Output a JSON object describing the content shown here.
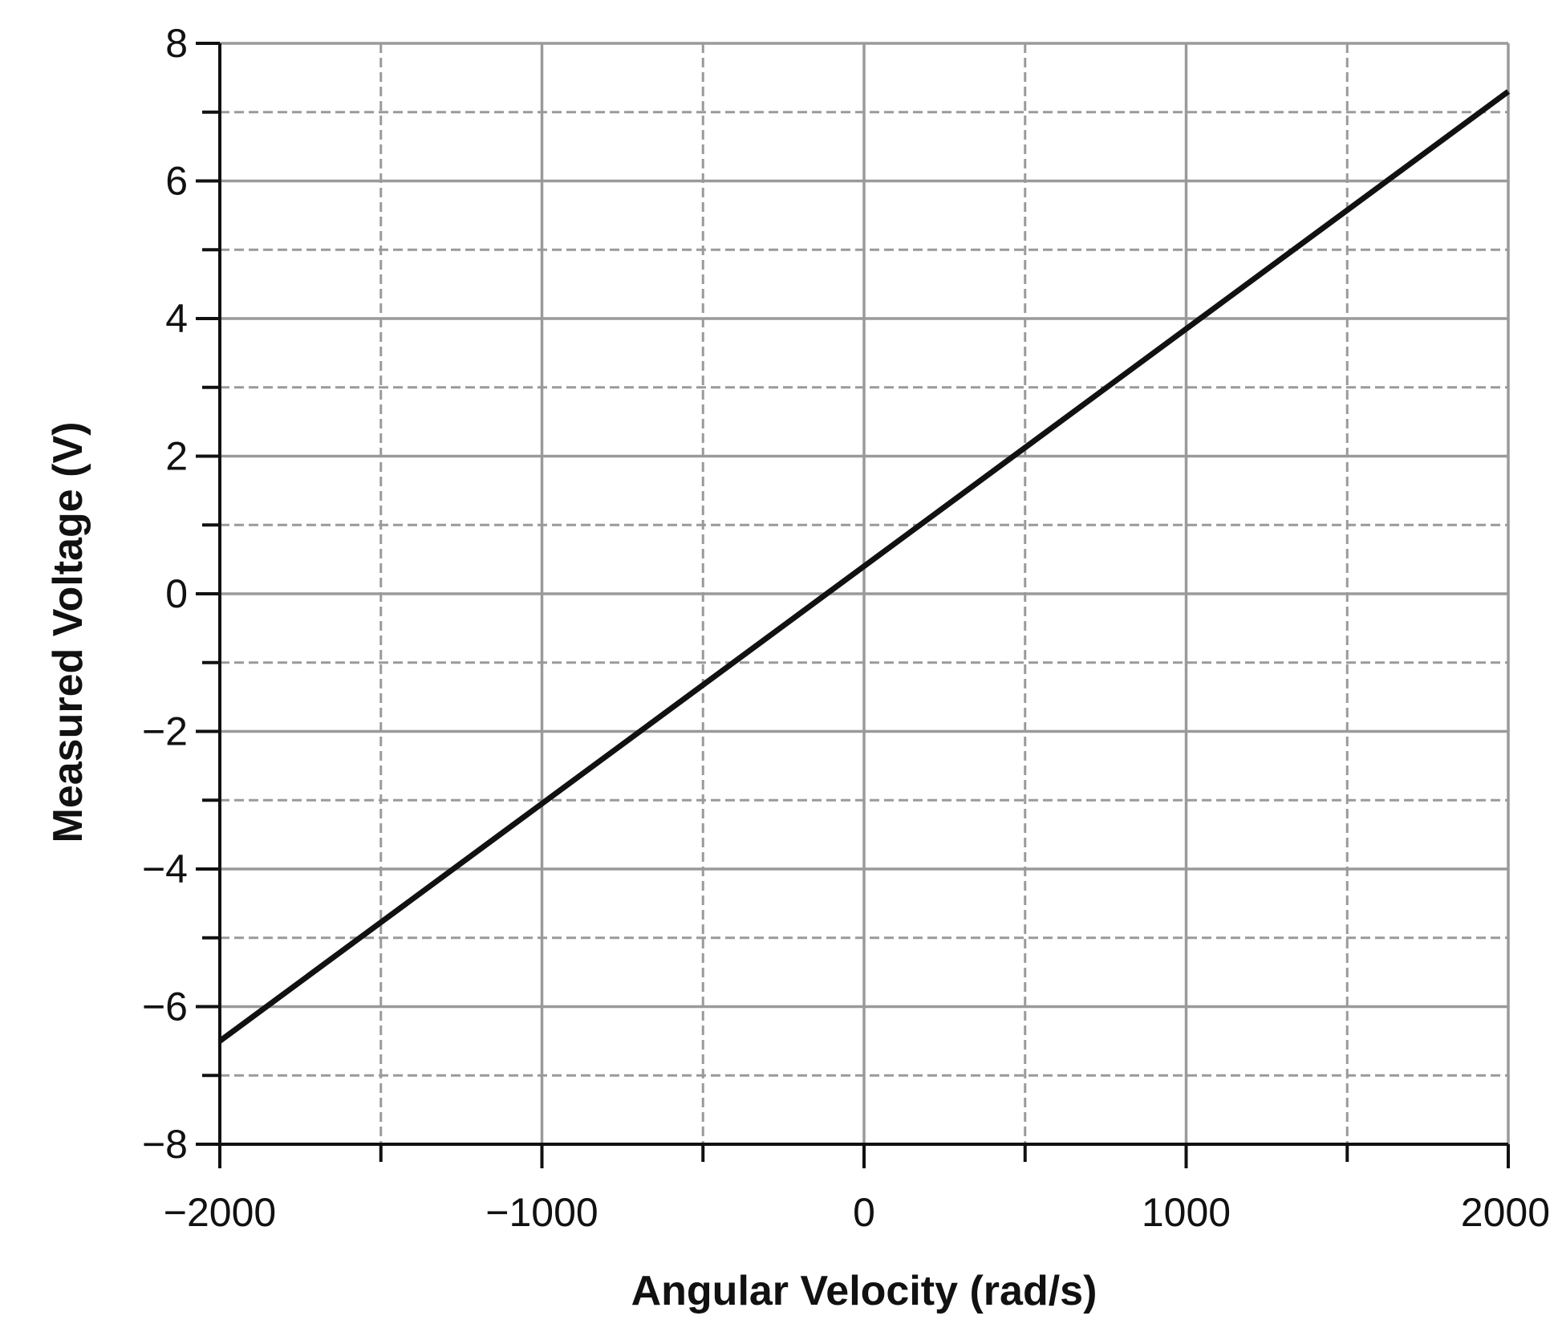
{
  "chart_data": {
    "type": "line",
    "title": "",
    "xlabel": "Angular Velocity (rad/s)",
    "ylabel": "Measured Voltage (V)",
    "xlim": [
      -2000,
      2000
    ],
    "ylim": [
      -8,
      8
    ],
    "x_major_ticks": [
      -2000,
      -1000,
      0,
      1000,
      2000
    ],
    "x_minor_ticks": [
      -1500,
      -500,
      500,
      1500
    ],
    "y_major_ticks": [
      -8,
      -6,
      -4,
      -2,
      0,
      2,
      4,
      6,
      8
    ],
    "y_minor_ticks": [
      -7,
      -5,
      -3,
      -1,
      1,
      3,
      5,
      7
    ],
    "x_tick_labels": [
      "−2000",
      "−1000",
      "0",
      "1000",
      "2000"
    ],
    "y_tick_labels": [
      "−8",
      "−6",
      "−4",
      "−2",
      "0",
      "2",
      "4",
      "6",
      "8"
    ],
    "grid": true,
    "grid_major_style": "solid",
    "grid_minor_style": "dashed",
    "grid_color": "#9a9a9c",
    "series": [
      {
        "color": "#111111",
        "x": [
          -2000,
          2000
        ],
        "y": [
          -6.5,
          7.3
        ]
      }
    ]
  }
}
